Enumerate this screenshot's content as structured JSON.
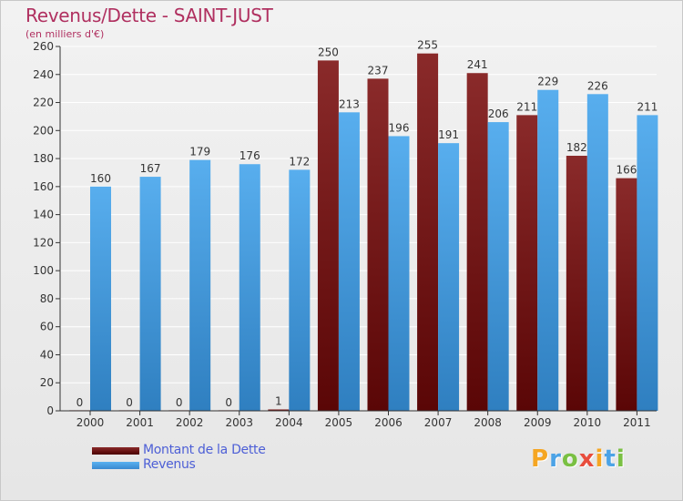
{
  "header": {
    "title": "Revenus/Dette - SAINT-JUST",
    "subtitle": "(en milliers d'€)"
  },
  "colors": {
    "dette": "#7a1a1a",
    "revenus": "#4ca3e6",
    "title": "#b03060",
    "legend_text": "#4d5fd6"
  },
  "legend": {
    "items": [
      {
        "label": "Montant de la Dette",
        "color": "#7a1a1a"
      },
      {
        "label": "Revenus",
        "color": "#4ca3e6"
      }
    ]
  },
  "logo": {
    "letters": [
      "P",
      "r",
      "o",
      "x",
      "i",
      "t",
      "i"
    ],
    "colors": [
      "#f5a623",
      "#4ca3e6",
      "#7ac043",
      "#e84d3d",
      "#f5a623",
      "#4ca3e6",
      "#7ac043"
    ]
  },
  "chart_data": {
    "type": "bar",
    "title": "Revenus/Dette - SAINT-JUST",
    "ylabel": "(en milliers d'€)",
    "xlabel": "",
    "categories": [
      "2000",
      "2001",
      "2002",
      "2003",
      "2004",
      "2005",
      "2006",
      "2007",
      "2008",
      "2009",
      "2010",
      "2011"
    ],
    "series": [
      {
        "name": "Montant de la Dette",
        "values": [
          0,
          0,
          0,
          0,
          1,
          250,
          237,
          255,
          241,
          211,
          182,
          166
        ]
      },
      {
        "name": "Revenus",
        "values": [
          160,
          167,
          179,
          176,
          172,
          213,
          196,
          191,
          206,
          229,
          226,
          211
        ]
      }
    ],
    "ylim": [
      0,
      260
    ],
    "yticks": [
      0,
      20,
      40,
      60,
      80,
      100,
      120,
      140,
      160,
      180,
      200,
      220,
      240,
      260
    ],
    "grid": true,
    "legend_position": "bottom-left"
  }
}
